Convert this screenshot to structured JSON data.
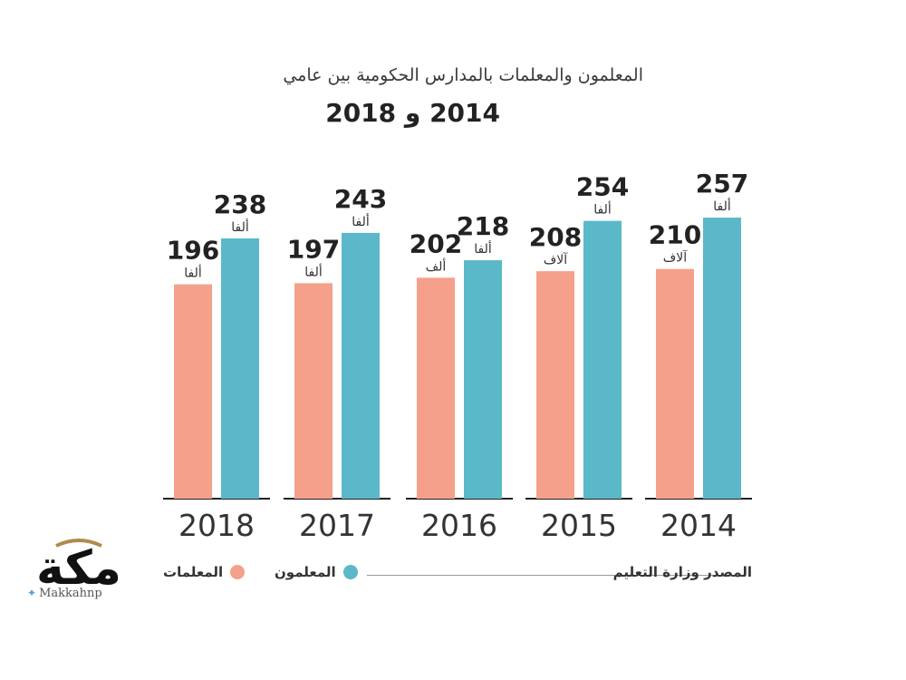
{
  "chart_data": {
    "type": "bar",
    "title": "المعلمون والمعلمات بالمدارس الحكومية بين عامي",
    "subtitle": "2014 و 2018",
    "categories": [
      "2018",
      "2017",
      "2016",
      "2015",
      "2014"
    ],
    "series": [
      {
        "name": "المعلمات",
        "color": "#f4a08a",
        "values": [
          196,
          197,
          202,
          208,
          210
        ],
        "unit_labels": [
          "ألفا",
          "ألفا",
          "ألف",
          "آلاف",
          "آلاف"
        ]
      },
      {
        "name": "المعلمون",
        "color": "#5bb8c9",
        "values": [
          238,
          243,
          218,
          254,
          257
        ],
        "unit_labels": [
          "ألفا",
          "ألفا",
          "ألفا",
          "ألفا",
          "ألفا"
        ]
      }
    ],
    "legend_position": "bottom",
    "grid": false
  },
  "source": "المصدر وزارة التعليم",
  "logo": {
    "text": "مكة",
    "handle": "Makkahnp",
    "icon": "twitter-bird-icon"
  }
}
